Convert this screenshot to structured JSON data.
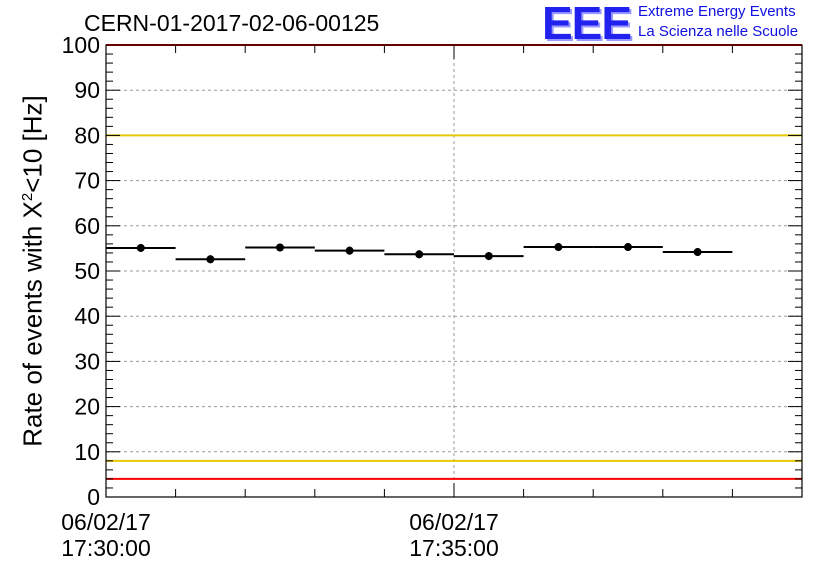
{
  "header": {
    "title": "CERN-01-2017-02-06-00125"
  },
  "logo": {
    "mark": "EEE",
    "line1": "Extreme Energy Events",
    "line2": "La Scienza nelle Scuole",
    "color": "#1010e0"
  },
  "chart_data": {
    "type": "scatter",
    "title": "CERN-01-2017-02-06-00125",
    "ylabel_prefix": "Rate of events with X",
    "ylabel_sup": "2",
    "ylabel_suffix": "<10 [Hz]",
    "ylim": [
      0,
      100
    ],
    "yticks": [
      0,
      10,
      20,
      30,
      40,
      50,
      60,
      70,
      80,
      90,
      100
    ],
    "xlim_minutes": [
      0,
      10
    ],
    "xticks": [
      {
        "minute": 0,
        "date": "06/02/17",
        "time": "17:30:00"
      },
      {
        "minute": 5,
        "date": "06/02/17",
        "time": "17:35:00"
      }
    ],
    "grid": true,
    "thresholds": [
      {
        "value": 100,
        "color": "#ff0000"
      },
      {
        "value": 80,
        "color": "#e8c800"
      },
      {
        "value": 8,
        "color": "#e8c800"
      },
      {
        "value": 4,
        "color": "#ff0000"
      }
    ],
    "points": [
      {
        "x_start": 0.0,
        "x_end": 1.0,
        "y": 55.1
      },
      {
        "x_start": 1.0,
        "x_end": 2.0,
        "y": 52.6
      },
      {
        "x_start": 2.0,
        "x_end": 3.0,
        "y": 55.2
      },
      {
        "x_start": 3.0,
        "x_end": 4.0,
        "y": 54.5
      },
      {
        "x_start": 4.0,
        "x_end": 5.0,
        "y": 53.7
      },
      {
        "x_start": 5.0,
        "x_end": 6.0,
        "y": 53.3
      },
      {
        "x_start": 6.0,
        "x_end": 7.0,
        "y": 55.3
      },
      {
        "x_start": 7.0,
        "x_end": 8.0,
        "y": 55.3
      },
      {
        "x_start": 8.0,
        "x_end": 9.0,
        "y": 54.2
      }
    ]
  }
}
